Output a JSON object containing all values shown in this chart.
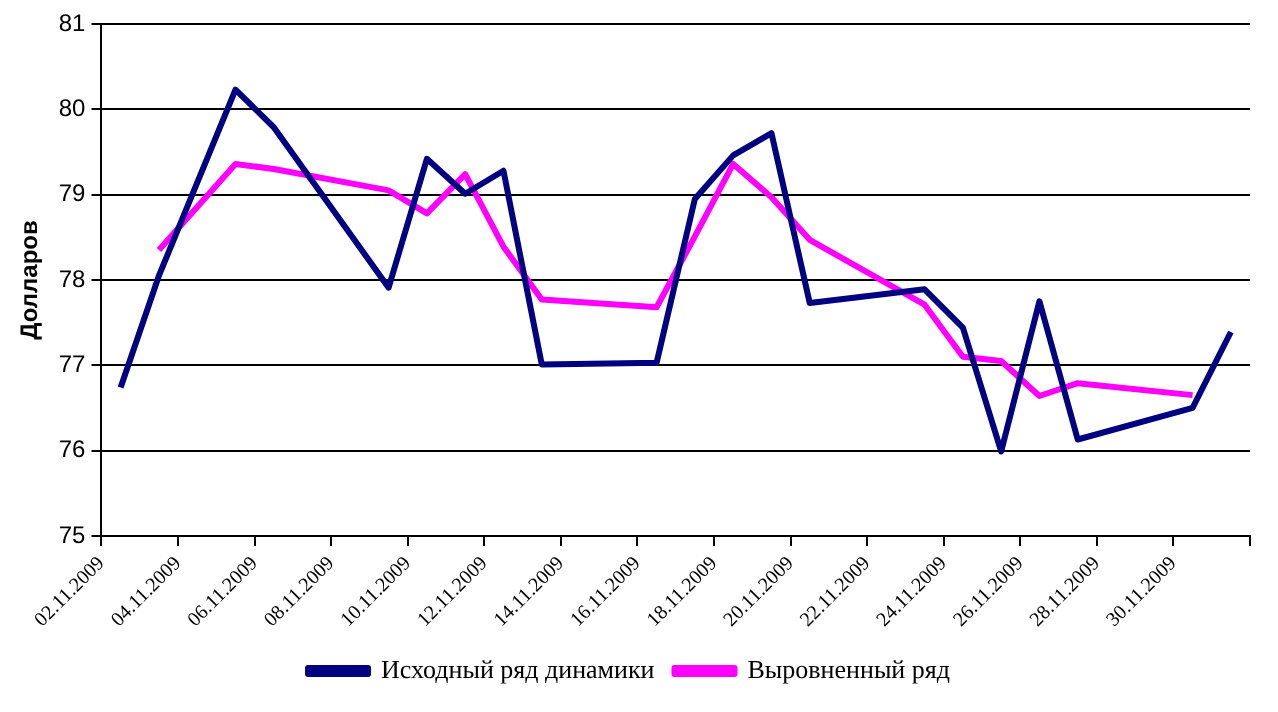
{
  "chart_data": {
    "type": "line",
    "ylabel": "Долларов",
    "ylim": [
      75,
      81
    ],
    "yticks": [
      75,
      76,
      77,
      78,
      79,
      80,
      81
    ],
    "xlim": [
      "2009-11-02",
      "2009-12-02"
    ],
    "xticks": [
      {
        "value": "2009-11-02",
        "label": "02.11.2009"
      },
      {
        "value": "2009-11-04",
        "label": "04.11.2009"
      },
      {
        "value": "2009-11-06",
        "label": "06.11.2009"
      },
      {
        "value": "2009-11-08",
        "label": "08.11.2009"
      },
      {
        "value": "2009-11-10",
        "label": "10.11.2009"
      },
      {
        "value": "2009-11-12",
        "label": "12.11.2009"
      },
      {
        "value": "2009-11-14",
        "label": "14.11.2009"
      },
      {
        "value": "2009-11-16",
        "label": "16.11.2009"
      },
      {
        "value": "2009-11-18",
        "label": "18.11.2009"
      },
      {
        "value": "2009-11-20",
        "label": "20.11.2009"
      },
      {
        "value": "2009-11-22",
        "label": "22.11.2009"
      },
      {
        "value": "2009-11-24",
        "label": "24.11.2009"
      },
      {
        "value": "2009-11-26",
        "label": "26.11.2009"
      },
      {
        "value": "2009-11-28",
        "label": "28.11.2009"
      },
      {
        "value": "2009-11-30",
        "label": "30.11.2009"
      },
      {
        "value": "2009-12-02",
        "label": null
      }
    ],
    "grid": "y",
    "legend": "bottom",
    "marker": "none",
    "line_style": "solid",
    "series": [
      {
        "name": "Исходный ряд динамики",
        "color": "#000080",
        "x": [
          "2009-11-02T12:00",
          "2009-11-03T12:00",
          "2009-11-05T12:00",
          "2009-11-06T12:00",
          "2009-11-09T12:00",
          "2009-11-10T12:00",
          "2009-11-11T12:00",
          "2009-11-12T12:00",
          "2009-11-13T12:00",
          "2009-11-16T12:00",
          "2009-11-17T12:00",
          "2009-11-18T12:00",
          "2009-11-19T12:00",
          "2009-11-20T12:00",
          "2009-11-23T12:00",
          "2009-11-24T12:00",
          "2009-11-25T12:00",
          "2009-11-26T12:00",
          "2009-11-27T12:00",
          "2009-11-30T12:00",
          "2009-12-01T12:00"
        ],
        "values": [
          76.74,
          78.05,
          80.23,
          79.79,
          77.91,
          79.42,
          79.01,
          79.28,
          77.01,
          77.03,
          78.95,
          79.46,
          79.72,
          77.73,
          77.89,
          77.44,
          75.99,
          77.75,
          76.13,
          76.5,
          77.39
        ]
      },
      {
        "name": "Выровненный ряд",
        "color": "#ff00ff",
        "x": [
          "2009-11-03T12:00",
          "2009-11-05T12:00",
          "2009-11-06T12:00",
          "2009-11-09T12:00",
          "2009-11-10T12:00",
          "2009-11-11T12:00",
          "2009-11-12T12:00",
          "2009-11-13T12:00",
          "2009-11-16T12:00",
          "2009-11-17T12:00",
          "2009-11-18T12:00",
          "2009-11-19T12:00",
          "2009-11-20T12:00",
          "2009-11-23T12:00",
          "2009-11-24T12:00",
          "2009-11-25T12:00",
          "2009-11-26T12:00",
          "2009-11-27T12:00",
          "2009-11-30T12:00"
        ],
        "values": [
          78.35,
          79.36,
          79.3,
          79.05,
          78.78,
          79.24,
          78.39,
          77.77,
          77.68,
          78.51,
          79.36,
          78.97,
          78.47,
          77.71,
          77.1,
          77.05,
          76.64,
          76.79,
          76.65
        ]
      }
    ]
  }
}
